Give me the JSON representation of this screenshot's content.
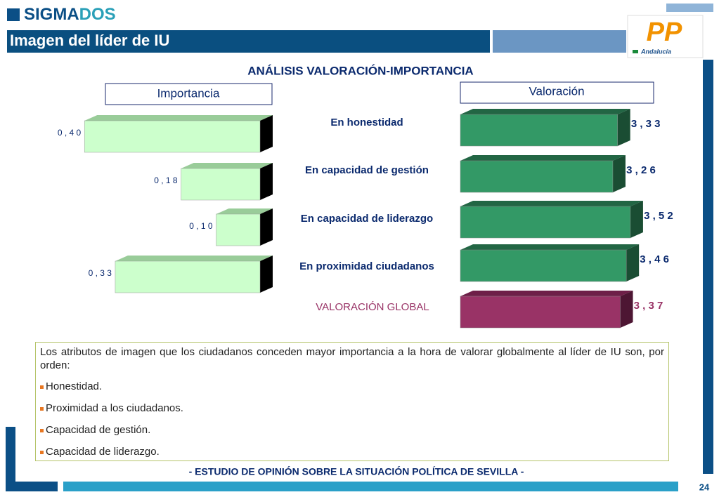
{
  "header": {
    "logo": [
      "SIGMA",
      "DOS"
    ],
    "title": "Imagen del líder de IU",
    "party_logo": "PP",
    "party_region": "Andalucía"
  },
  "title": "ANÁLISIS VALORACIÓN-IMPORTANCIA",
  "chart_data": [
    {
      "type": "bar",
      "title": "Importancia",
      "values": [
        0.4,
        0.18,
        0.1,
        0.33
      ],
      "value_labels": [
        "0 , 4 0",
        "0 , 1 8",
        "0 , 1 0",
        "0 , 3 3"
      ],
      "xlim": [
        0,
        0.45
      ],
      "color": "#ccffcc"
    },
    {
      "type": "bar",
      "title": "Valoración",
      "categories": [
        "En honestidad",
        "En capacidad de gestión",
        "En capacidad de liderazgo",
        "En proximidad ciudadanos",
        "VALORACIÓN GLOBAL"
      ],
      "values": [
        3.33,
        3.26,
        3.52,
        3.46,
        3.37
      ],
      "value_labels": [
        "3 , 3 3",
        "3 , 2 6",
        "3 , 5 2",
        "3 , 4 6",
        "3 , 3 7"
      ],
      "xlim": [
        1,
        4
      ],
      "colors": [
        "#339966",
        "#339966",
        "#339966",
        "#339966",
        "#993366"
      ]
    }
  ],
  "text": {
    "intro": "Los atributos de imagen que los ciudadanos conceden mayor importancia a la hora de valorar globalmente al líder de IU son, por orden:",
    "items": [
      "Honestidad.",
      "Proximidad a los ciudadanos.",
      "Capacidad de gestión.",
      "Capacidad de liderazgo."
    ]
  },
  "footer": {
    "note": "- ESTUDIO DE OPINIÓN SOBRE LA SITUACIÓN POLÍTICA DE SEVILLA  -",
    "page": "24"
  }
}
